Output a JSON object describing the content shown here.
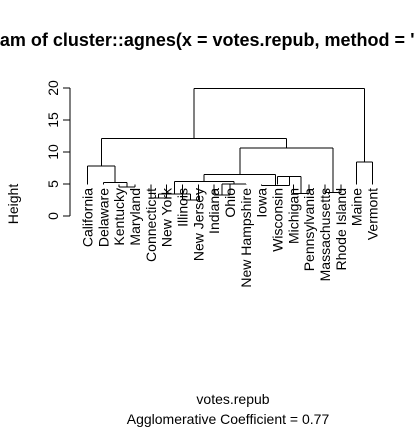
{
  "chart_data": {
    "type": "dendrogram",
    "title": "Dendrogram of  cluster::agnes(x = votes.repub, method = \"average\")",
    "xlabel": "votes.repub",
    "sublabel": "Agglomerative Coefficient =  0.77",
    "ylabel": "Height",
    "yticks": [
      0,
      5,
      10,
      15,
      20
    ],
    "ylim": [
      0,
      20
    ],
    "leaves": [
      "California",
      "Delaware",
      "Kentucky",
      "Maryland",
      "Connecticut",
      "New York",
      "Illinois",
      "New Jersey",
      "Indiana",
      "Ohio",
      "New Hampshire",
      "Iowa",
      "Wisconsin",
      "Michigan",
      "Pennsylvania",
      "Massachusetts",
      "Rhode Island",
      "Maine",
      "Vermont"
    ],
    "merges": [
      {
        "a": "L:Kentucky",
        "b": "L:Maryland",
        "height": 4.5
      },
      {
        "a": "L:Delaware",
        "b": "M:0",
        "height": 5.2
      },
      {
        "a": "L:California",
        "b": "M:1",
        "height": 7.8
      },
      {
        "a": "L:Connecticut",
        "b": "L:New York",
        "height": 2.8
      },
      {
        "a": "L:Illinois",
        "b": "L:New Jersey",
        "height": 2.5
      },
      {
        "a": "M:3",
        "b": "M:4",
        "height": 3.4
      },
      {
        "a": "L:Indiana",
        "b": "L:Ohio",
        "height": 3.3
      },
      {
        "a": "L:New Hampshire",
        "b": "M:6",
        "height": 5.0
      },
      {
        "a": "M:5",
        "b": "M:7",
        "height": 5.4
      },
      {
        "a": "L:Michigan",
        "b": "L:Pennsylvania",
        "height": 3.5
      },
      {
        "a": "L:Wisconsin",
        "b": "M:9",
        "height": 6.2
      },
      {
        "a": "L:Iowa",
        "b": "M:10",
        "height": 4.8
      },
      {
        "a": "M:8",
        "b": "M:11",
        "height": 6.5
      },
      {
        "a": "L:Massachusetts",
        "b": "L:Rhode Island",
        "height": 3.7
      },
      {
        "a": "M:12",
        "b": "M:13",
        "height": 10.6
      },
      {
        "a": "M:2",
        "b": "M:14",
        "height": 12.1
      },
      {
        "a": "L:Maine",
        "b": "L:Vermont",
        "height": 8.4
      },
      {
        "a": "M:15",
        "b": "M:16",
        "height": 19.9
      }
    ]
  }
}
